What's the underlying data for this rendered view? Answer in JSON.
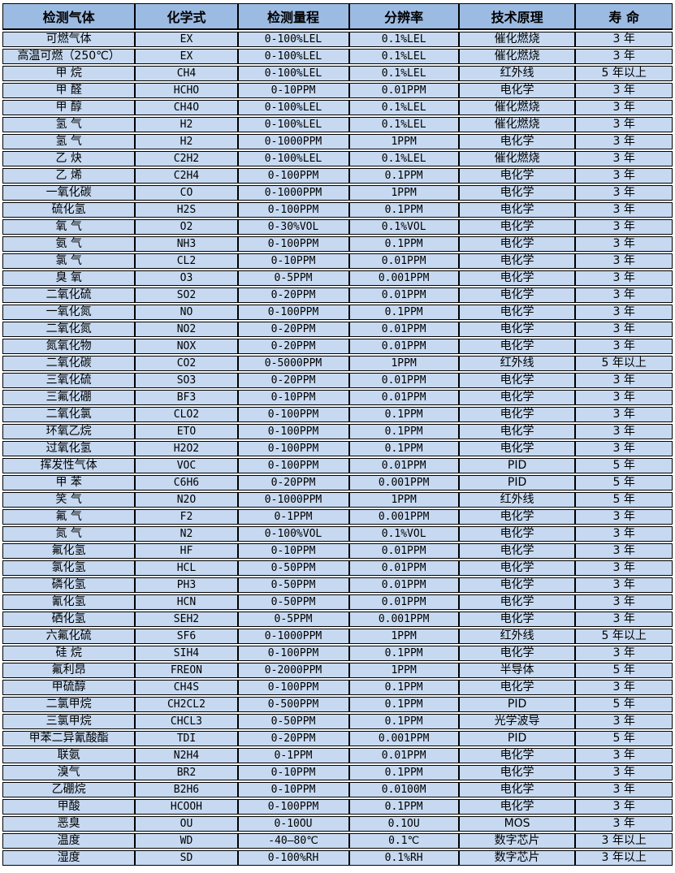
{
  "colors": {
    "header_bg": "#9cbbe3",
    "row_bg": "#c6d9f1",
    "border": "#000000",
    "text": "#000000"
  },
  "table": {
    "columns": [
      {
        "key": "gas",
        "label": "检测气体"
      },
      {
        "key": "formula",
        "label": "化学式"
      },
      {
        "key": "range",
        "label": "检测量程"
      },
      {
        "key": "resolution",
        "label": "分辨率"
      },
      {
        "key": "tech",
        "label": "技术原理"
      },
      {
        "key": "lifespan",
        "label": "寿 命"
      }
    ],
    "rows": [
      [
        "可燃气体",
        "EX",
        "0-100%LEL",
        "0.1%LEL",
        "催化燃烧",
        "3 年"
      ],
      [
        "高温可燃（250℃）",
        "EX",
        "0-100%LEL",
        "0.1%LEL",
        "催化燃烧",
        "3 年"
      ],
      [
        "甲 烷",
        "CH4",
        "0-100%LEL",
        "0.1%LEL",
        "红外线",
        "5 年以上"
      ],
      [
        "甲 醛",
        "HCHO",
        "0-10PPM",
        "0.01PPM",
        "电化学",
        "3 年"
      ],
      [
        "甲 醇",
        "CH4O",
        "0-100%LEL",
        "0.1%LEL",
        "催化燃烧",
        "3 年"
      ],
      [
        "氢 气",
        "H2",
        "0-100%LEL",
        "0.1%LEL",
        "催化燃烧",
        "3 年"
      ],
      [
        "氢 气",
        "H2",
        "0-1000PPM",
        "1PPM",
        "电化学",
        "3 年"
      ],
      [
        "乙 炔",
        "C2H2",
        "0-100%LEL",
        "0.1%LEL",
        "催化燃烧",
        "3 年"
      ],
      [
        "乙 烯",
        "C2H4",
        "0-100PPM",
        "0.1PPM",
        "电化学",
        "3 年"
      ],
      [
        "一氧化碳",
        "CO",
        "0-1000PPM",
        "1PPM",
        "电化学",
        "3 年"
      ],
      [
        "硫化氢",
        "H2S",
        "0-100PPM",
        "0.1PPM",
        "电化学",
        "3 年"
      ],
      [
        "氧 气",
        "O2",
        "0-30%VOL",
        "0.1%VOL",
        "电化学",
        "3 年"
      ],
      [
        "氨 气",
        "NH3",
        "0-100PPM",
        "0.1PPM",
        "电化学",
        "3 年"
      ],
      [
        "氯 气",
        "CL2",
        "0-10PPM",
        "0.01PPM",
        "电化学",
        "3 年"
      ],
      [
        "臭 氧",
        "O3",
        "0-5PPM",
        "0.001PPM",
        "电化学",
        "3 年"
      ],
      [
        "二氧化硫",
        "SO2",
        "0-20PPM",
        "0.01PPM",
        "电化学",
        "3 年"
      ],
      [
        "一氧化氮",
        "NO",
        "0-100PPM",
        "0.1PPM",
        "电化学",
        "3 年"
      ],
      [
        "二氧化氮",
        "NO2",
        "0-20PPM",
        "0.01PPM",
        "电化学",
        "3 年"
      ],
      [
        "氮氧化物",
        "NOX",
        "0-20PPM",
        "0.01PPM",
        "电化学",
        "3 年"
      ],
      [
        "二氧化碳",
        "CO2",
        "0-5000PPM",
        "1PPM",
        "红外线",
        "5 年以上"
      ],
      [
        "三氧化硫",
        "SO3",
        "0-20PPM",
        "0.01PPM",
        "电化学",
        "3 年"
      ],
      [
        "三氟化硼",
        "BF3",
        "0-10PPM",
        "0.01PPM",
        "电化学",
        "3 年"
      ],
      [
        "二氧化氯",
        "CLO2",
        "0-100PPM",
        "0.1PPM",
        "电化学",
        "3 年"
      ],
      [
        "环氧乙烷",
        "ETO",
        "0-100PPM",
        "0.1PPM",
        "电化学",
        "3 年"
      ],
      [
        "过氧化氢",
        "H2O2",
        "0-100PPM",
        "0.1PPM",
        "电化学",
        "3 年"
      ],
      [
        "挥发性气体",
        "VOC",
        "0-100PPM",
        "0.01PPM",
        "PID",
        "5 年"
      ],
      [
        "甲 苯",
        "C6H6",
        "0-20PPM",
        "0.001PPM",
        "PID",
        "5 年"
      ],
      [
        "笑 气",
        "N2O",
        "0-1000PPM",
        "1PPM",
        "红外线",
        "5 年"
      ],
      [
        "氟 气",
        "F2",
        "0-1PPM",
        "0.001PPM",
        "电化学",
        "3 年"
      ],
      [
        "氮 气",
        "N2",
        "0-100%VOL",
        "0.1%VOL",
        "电化学",
        "3 年"
      ],
      [
        "氟化氢",
        "HF",
        "0-10PPM",
        "0.01PPM",
        "电化学",
        "3 年"
      ],
      [
        "氯化氢",
        "HCL",
        "0-50PPM",
        "0.01PPM",
        "电化学",
        "3 年"
      ],
      [
        "磷化氢",
        "PH3",
        "0-50PPM",
        "0.01PPM",
        "电化学",
        "3 年"
      ],
      [
        "氰化氢",
        "HCN",
        "0-50PPM",
        "0.01PPM",
        "电化学",
        "3 年"
      ],
      [
        "硒化氢",
        "SEH2",
        "0-5PPM",
        "0.001PPM",
        "电化学",
        "3 年"
      ],
      [
        "六氟化硫",
        "SF6",
        "0-1000PPM",
        "1PPM",
        "红外线",
        "5 年以上"
      ],
      [
        "硅 烷",
        "SIH4",
        "0-100PPM",
        "0.1PPM",
        "电化学",
        "3 年"
      ],
      [
        "氟利昂",
        "FREON",
        "0-2000PPM",
        "1PPM",
        "半导体",
        "5 年"
      ],
      [
        "甲硫醇",
        "CH4S",
        "0-100PPM",
        "0.1PPM",
        "电化学",
        "3 年"
      ],
      [
        "二氯甲烷",
        "CH2CL2",
        "0-500PPM",
        "0.1PPM",
        "PID",
        "5 年"
      ],
      [
        "三氯甲烷",
        "CHCL3",
        "0-50PPM",
        "0.1PPM",
        "光学波导",
        "3 年"
      ],
      [
        "甲苯二异氰酸酯",
        "TDI",
        "0-20PPM",
        "0.001PPM",
        "PID",
        "5 年"
      ],
      [
        "联氨",
        "N2H4",
        "0-1PPM",
        "0.01PPM",
        "电化学",
        "3 年"
      ],
      [
        "溴气",
        "BR2",
        "0-10PPM",
        "0.1PPM",
        "电化学",
        "3 年"
      ],
      [
        "乙硼烷",
        "B2H6",
        "0-10PPM",
        "0.0100M",
        "电化学",
        "3 年"
      ],
      [
        "甲酸",
        "HCOOH",
        "0-100PPM",
        "0.1PPM",
        "电化学",
        "3 年"
      ],
      [
        "恶臭",
        "OU",
        "0-10OU",
        "0.1OU",
        "MOS",
        "3 年"
      ],
      [
        "温度",
        "WD",
        "-40—80℃",
        "0.1℃",
        "数字芯片",
        "3 年以上"
      ],
      [
        "湿度",
        "SD",
        "0-100%RH",
        "0.1%RH",
        "数字芯片",
        "3 年以上"
      ]
    ]
  }
}
